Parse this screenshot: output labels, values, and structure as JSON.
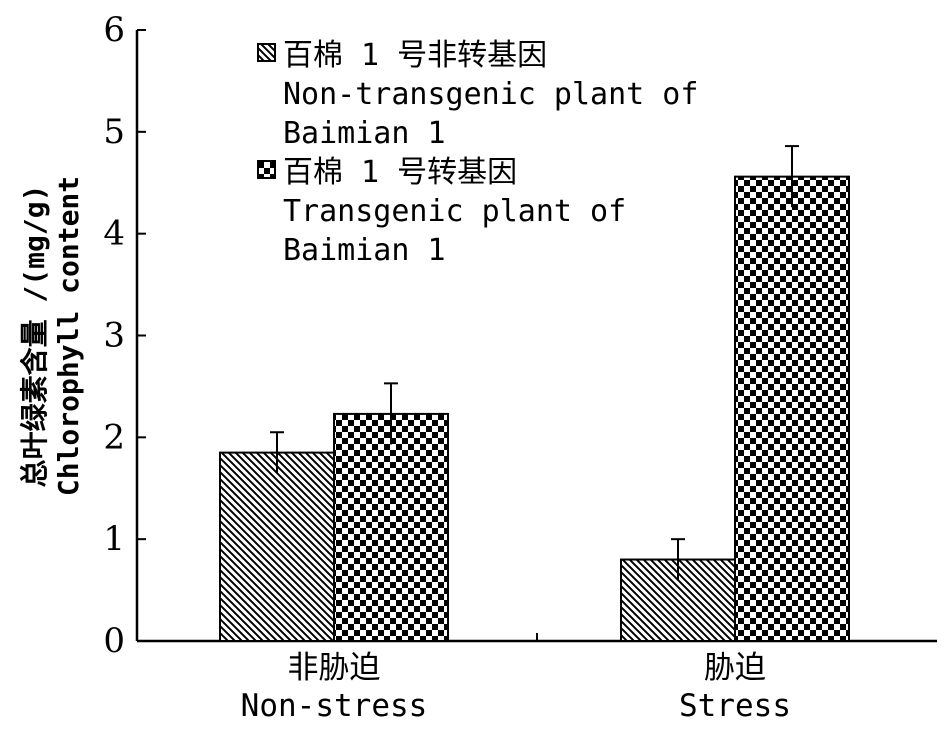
{
  "chart_data": {
    "type": "bar",
    "categories": [
      {
        "zh": "非胁迫",
        "en": "Non-stress"
      },
      {
        "zh": "胁迫",
        "en": "Stress"
      }
    ],
    "series": [
      {
        "name": "百棉 1 号非转基因",
        "name_lines": [
          "百棉 1 号非转基因",
          "Non-transgenic plant of",
          "Baimian 1"
        ],
        "pattern": "diagonal-hatch",
        "values": [
          1.85,
          0.8
        ],
        "errors": [
          0.2,
          0.2
        ]
      },
      {
        "name": "百棉 1 号转基因",
        "name_lines": [
          "百棉 1 号转基因",
          "Transgenic plant of",
          "Baimian 1"
        ],
        "pattern": "checkerboard",
        "values": [
          2.23,
          4.56
        ],
        "errors": [
          0.3,
          0.3
        ]
      }
    ],
    "ylabel": [
      "总叶绿素含量 /(mg/g)",
      "Chlorophyll content"
    ],
    "yticks": [
      0,
      1,
      2,
      3,
      4,
      5,
      6
    ],
    "ylim": [
      0,
      6
    ],
    "grid": false,
    "legend_position": "top-left"
  }
}
